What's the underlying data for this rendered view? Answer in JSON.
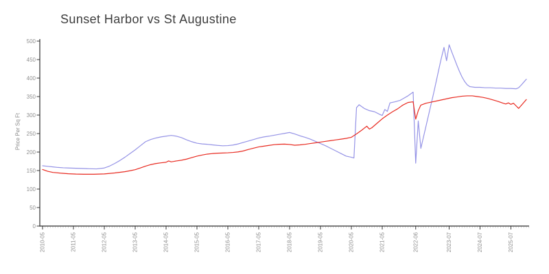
{
  "chart_data": {
    "type": "line",
    "title": "Sunset Harbor vs St Augustine",
    "xlabel": "",
    "ylabel": "Price Per Sq Ft",
    "ylim": [
      0,
      500
    ],
    "y_ticks": [
      0,
      50,
      100,
      150,
      200,
      250,
      300,
      350,
      400,
      450,
      500
    ],
    "x_tick_labels": [
      "2010-05",
      "2011-05",
      "2012-05",
      "2013-05",
      "2014-05",
      "2015-05",
      "2016-05",
      "2017-05",
      "2018-05",
      "2019-05",
      "2020-05",
      "2021-05",
      "2022-06",
      "2023-07",
      "2024-07",
      "2025-07"
    ],
    "x_minor_tick_unit": "month",
    "x_range": [
      "2010-05",
      "2026-01"
    ],
    "grid": false,
    "legend_position": "none",
    "colors": {
      "axis_line": "#2f2f2f",
      "major_tick": "#333333",
      "minor_tick": "#c4c4c4",
      "tick_label": "#909090",
      "title": "#3c3c3c",
      "ylabel": "#8a8a8a"
    },
    "series": [
      {
        "name": "Sunset Harbor",
        "color": "#9593e6",
        "points": [
          [
            "2010-05",
            163
          ],
          [
            "2010-07",
            161.5
          ],
          [
            "2010-09",
            160
          ],
          [
            "2010-11",
            158.5
          ],
          [
            "2011-01",
            157.5
          ],
          [
            "2011-03",
            157
          ],
          [
            "2011-05",
            156.5
          ],
          [
            "2011-07",
            156
          ],
          [
            "2011-09",
            155.5
          ],
          [
            "2011-11",
            155
          ],
          [
            "2012-02",
            154.5
          ],
          [
            "2012-05",
            157
          ],
          [
            "2012-07",
            162
          ],
          [
            "2012-09",
            169
          ],
          [
            "2012-11",
            177
          ],
          [
            "2013-01",
            186
          ],
          [
            "2013-03",
            196
          ],
          [
            "2013-05",
            206
          ],
          [
            "2013-07",
            217
          ],
          [
            "2013-09",
            228
          ],
          [
            "2013-11",
            234
          ],
          [
            "2014-01",
            238
          ],
          [
            "2014-03",
            241
          ],
          [
            "2014-05",
            243
          ],
          [
            "2014-07",
            245
          ],
          [
            "2014-09",
            243
          ],
          [
            "2014-11",
            239
          ],
          [
            "2015-01",
            233
          ],
          [
            "2015-03",
            228
          ],
          [
            "2015-05",
            224
          ],
          [
            "2015-07",
            222
          ],
          [
            "2015-09",
            221
          ],
          [
            "2015-11",
            219.5
          ],
          [
            "2016-01",
            218
          ],
          [
            "2016-03",
            217
          ],
          [
            "2016-05",
            217.5
          ],
          [
            "2016-07",
            219
          ],
          [
            "2016-09",
            222
          ],
          [
            "2016-11",
            226
          ],
          [
            "2017-01",
            230
          ],
          [
            "2017-03",
            234
          ],
          [
            "2017-05",
            238
          ],
          [
            "2017-07",
            241
          ],
          [
            "2017-09",
            243
          ],
          [
            "2017-11",
            245.5
          ],
          [
            "2018-01",
            248
          ],
          [
            "2018-03",
            250.5
          ],
          [
            "2018-05",
            253
          ],
          [
            "2018-07",
            249
          ],
          [
            "2018-09",
            244
          ],
          [
            "2018-11",
            240
          ],
          [
            "2019-01",
            235
          ],
          [
            "2019-03",
            229
          ],
          [
            "2019-05",
            223
          ],
          [
            "2019-07",
            217
          ],
          [
            "2019-09",
            210
          ],
          [
            "2019-11",
            203
          ],
          [
            "2020-01",
            196
          ],
          [
            "2020-03",
            189
          ],
          [
            "2020-05",
            186
          ],
          [
            "2020-06",
            184
          ],
          [
            "2020-07",
            320
          ],
          [
            "2020-08",
            328
          ],
          [
            "2020-10",
            318
          ],
          [
            "2020-12",
            312
          ],
          [
            "2021-02",
            309
          ],
          [
            "2021-04",
            302
          ],
          [
            "2021-05",
            299
          ],
          [
            "2021-06",
            315
          ],
          [
            "2021-07",
            310
          ],
          [
            "2021-08",
            333
          ],
          [
            "2021-10",
            336
          ],
          [
            "2021-12",
            340
          ],
          [
            "2022-01",
            344
          ],
          [
            "2022-03",
            352
          ],
          [
            "2022-05",
            362
          ],
          [
            "2022-06",
            170
          ],
          [
            "2022-07",
            284
          ],
          [
            "2022-08",
            210
          ],
          [
            "2022-09",
            240
          ],
          [
            "2022-10",
            270
          ],
          [
            "2022-11",
            300
          ],
          [
            "2022-12",
            330
          ],
          [
            "2023-01",
            360
          ],
          [
            "2023-02",
            392
          ],
          [
            "2023-03",
            424
          ],
          [
            "2023-04",
            455
          ],
          [
            "2023-05",
            483
          ],
          [
            "2023-06",
            447
          ],
          [
            "2023-07",
            490
          ],
          [
            "2023-08",
            471
          ],
          [
            "2023-09",
            453
          ],
          [
            "2023-10",
            435
          ],
          [
            "2023-11",
            418
          ],
          [
            "2023-12",
            403
          ],
          [
            "2024-01",
            391
          ],
          [
            "2024-02",
            382
          ],
          [
            "2024-03",
            377
          ],
          [
            "2024-05",
            375
          ],
          [
            "2024-07",
            375
          ],
          [
            "2024-09",
            374
          ],
          [
            "2024-11",
            374
          ],
          [
            "2025-01",
            373
          ],
          [
            "2025-03",
            373
          ],
          [
            "2025-05",
            372
          ],
          [
            "2025-07",
            372
          ],
          [
            "2025-09",
            371
          ],
          [
            "2025-10",
            374
          ],
          [
            "2025-11",
            381
          ],
          [
            "2025-12",
            389
          ],
          [
            "2026-01",
            397
          ]
        ]
      },
      {
        "name": "St Augustine",
        "color": "#e8291f",
        "points": [
          [
            "2010-05",
            153
          ],
          [
            "2010-07",
            148
          ],
          [
            "2010-09",
            145
          ],
          [
            "2010-12",
            143
          ],
          [
            "2011-03",
            141.5
          ],
          [
            "2011-06",
            140.5
          ],
          [
            "2011-09",
            140
          ],
          [
            "2012-01",
            140
          ],
          [
            "2012-05",
            141
          ],
          [
            "2012-09",
            143.5
          ],
          [
            "2013-01",
            147
          ],
          [
            "2013-03",
            149.5
          ],
          [
            "2013-05",
            152.5
          ],
          [
            "2013-07",
            157
          ],
          [
            "2013-09",
            162
          ],
          [
            "2013-11",
            166
          ],
          [
            "2014-01",
            169
          ],
          [
            "2014-03",
            171
          ],
          [
            "2014-05",
            172.5
          ],
          [
            "2014-06",
            176
          ],
          [
            "2014-07",
            173.5
          ],
          [
            "2014-09",
            176
          ],
          [
            "2014-11",
            178
          ],
          [
            "2015-01",
            181
          ],
          [
            "2015-03",
            185
          ],
          [
            "2015-05",
            189
          ],
          [
            "2015-07",
            192
          ],
          [
            "2015-09",
            194.5
          ],
          [
            "2015-11",
            196
          ],
          [
            "2016-01",
            197
          ],
          [
            "2016-03",
            197.5
          ],
          [
            "2016-05",
            198
          ],
          [
            "2016-07",
            199
          ],
          [
            "2016-09",
            200.5
          ],
          [
            "2016-11",
            203
          ],
          [
            "2017-01",
            207
          ],
          [
            "2017-03",
            210.5
          ],
          [
            "2017-05",
            214
          ],
          [
            "2017-07",
            216
          ],
          [
            "2017-09",
            218
          ],
          [
            "2017-11",
            220
          ],
          [
            "2018-01",
            221
          ],
          [
            "2018-03",
            221.5
          ],
          [
            "2018-05",
            220.5
          ],
          [
            "2018-07",
            218.5
          ],
          [
            "2018-09",
            219.5
          ],
          [
            "2018-11",
            221
          ],
          [
            "2019-01",
            223
          ],
          [
            "2019-03",
            225
          ],
          [
            "2019-05",
            227
          ],
          [
            "2019-07",
            229
          ],
          [
            "2019-09",
            231
          ],
          [
            "2019-11",
            233
          ],
          [
            "2020-01",
            235
          ],
          [
            "2020-03",
            237
          ],
          [
            "2020-05",
            240
          ],
          [
            "2020-07",
            249
          ],
          [
            "2020-09",
            259
          ],
          [
            "2020-11",
            270
          ],
          [
            "2020-12",
            262
          ],
          [
            "2021-01",
            266
          ],
          [
            "2021-03",
            278
          ],
          [
            "2021-05",
            290
          ],
          [
            "2021-07",
            300
          ],
          [
            "2021-09",
            309
          ],
          [
            "2021-11",
            317
          ],
          [
            "2022-01",
            327
          ],
          [
            "2022-03",
            334
          ],
          [
            "2022-05",
            336
          ],
          [
            "2022-06",
            289
          ],
          [
            "2022-07",
            312
          ],
          [
            "2022-08",
            327
          ],
          [
            "2022-10",
            332
          ],
          [
            "2022-12",
            335
          ],
          [
            "2023-02",
            338
          ],
          [
            "2023-04",
            341
          ],
          [
            "2023-06",
            344
          ],
          [
            "2023-08",
            347
          ],
          [
            "2023-10",
            349
          ],
          [
            "2023-12",
            351
          ],
          [
            "2024-02",
            352
          ],
          [
            "2024-04",
            352
          ],
          [
            "2024-06",
            350
          ],
          [
            "2024-08",
            348
          ],
          [
            "2024-10",
            345
          ],
          [
            "2024-12",
            341
          ],
          [
            "2025-02",
            337
          ],
          [
            "2025-04",
            332
          ],
          [
            "2025-05",
            330
          ],
          [
            "2025-06",
            333
          ],
          [
            "2025-07",
            329
          ],
          [
            "2025-08",
            332
          ],
          [
            "2025-09",
            325
          ],
          [
            "2025-10",
            318
          ],
          [
            "2025-11",
            326
          ],
          [
            "2025-12",
            334
          ],
          [
            "2026-01",
            342
          ]
        ]
      }
    ]
  }
}
